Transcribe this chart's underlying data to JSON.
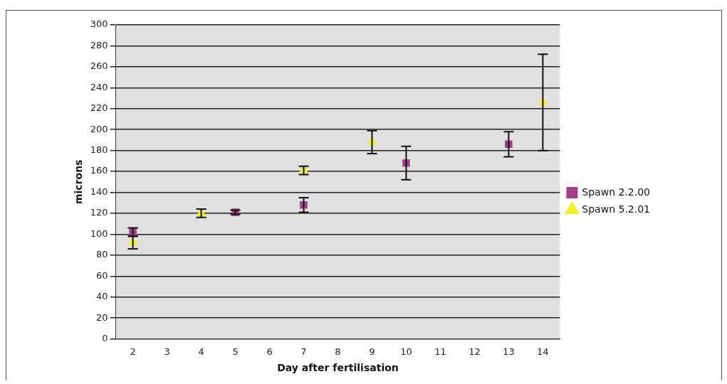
{
  "chart_data": {
    "type": "scatter",
    "xlabel": "Day after fertilisation",
    "ylabel": "microns",
    "categories": [
      "2",
      "3",
      "4",
      "5",
      "6",
      "7",
      "8",
      "9",
      "10",
      "11",
      "12",
      "13",
      "14"
    ],
    "series": [
      {
        "name": "Spawn 2.2.00",
        "color": "#a0408c",
        "marker": "square",
        "values": [
          102,
          null,
          null,
          121,
          null,
          128,
          null,
          null,
          168,
          null,
          null,
          186,
          null
        ],
        "errors": [
          4,
          null,
          null,
          2,
          null,
          7,
          null,
          null,
          16,
          null,
          null,
          12,
          null
        ]
      },
      {
        "name": "Spawn 5.2.01",
        "color": "#f0f020",
        "marker": "triangle",
        "values": [
          92,
          null,
          120,
          null,
          null,
          161,
          null,
          188,
          null,
          null,
          null,
          null,
          226
        ],
        "errors": [
          6,
          null,
          4,
          null,
          null,
          4,
          null,
          11,
          null,
          null,
          null,
          null,
          46
        ]
      }
    ],
    "ylim": [
      0,
      300
    ],
    "yticks": [
      0,
      20,
      40,
      60,
      80,
      100,
      120,
      140,
      160,
      180,
      200,
      220,
      240,
      260,
      280,
      300
    ],
    "grid": "y",
    "legend": "right"
  }
}
